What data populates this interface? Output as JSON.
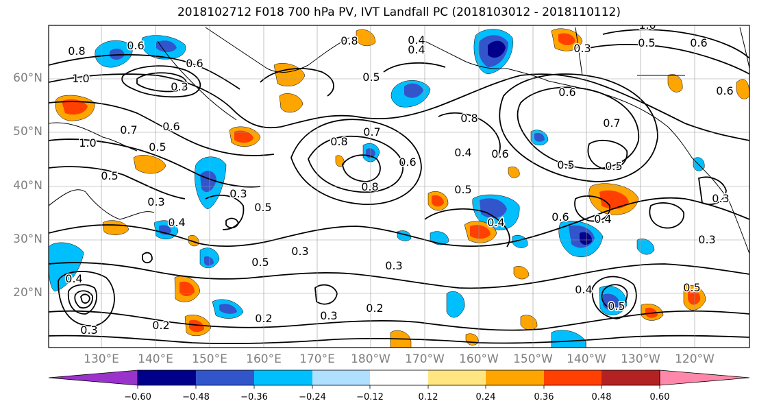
{
  "title": "2018102712 F018 700 hPa PV, IVT Landfall PC (2018103012 - 2018110112)",
  "map": {
    "lat_labels": [
      "60°N",
      "50°N",
      "40°N",
      "30°N",
      "20°N"
    ],
    "lon_labels": [
      "130°E",
      "140°E",
      "150°E",
      "160°E",
      "170°E",
      "180°W",
      "170°W",
      "160°W",
      "150°W",
      "140°W",
      "130°W",
      "120°W"
    ],
    "contour_labels": [
      "1.0",
      "0.8",
      "0.6",
      "0.3",
      "0.6",
      "0.7",
      "0.5",
      "1.0",
      "0.6",
      "0.5",
      "0.3",
      "0.3",
      "0.5",
      "0.4",
      "0.8",
      "0.5",
      "0.4",
      "0.8",
      "0.7",
      "0.8",
      "0.6",
      "0.8",
      "0.4",
      "0.5",
      "0.6",
      "0.5",
      "0.4",
      "0.4",
      "0.6",
      "0.4",
      "0.3",
      "0.3",
      "0.2",
      "0.2",
      "0.3",
      "0.2",
      "0.4",
      "0.5",
      "0.3",
      "0.7",
      "0.6",
      "0.4",
      "0.5",
      "0.3",
      "0.5",
      "1.0",
      "0.5",
      "0.6",
      "0.6",
      "0.3",
      "0.3",
      "0.5"
    ]
  },
  "colorbar": {
    "ticks": [
      "−0.60",
      "−0.48",
      "−0.36",
      "−0.24",
      "−0.12",
      "0.12",
      "0.24",
      "0.36",
      "0.48",
      "0.60"
    ],
    "colors": [
      "#9933cc",
      "#00008b",
      "#3355cc",
      "#00bfff",
      "#b0e0ff",
      "#ffffff",
      "#ffe680",
      "#ffa500",
      "#ff4000",
      "#b22222",
      "#ff88aa"
    ]
  },
  "shading_colors": {
    "neg_strong": "#00008b",
    "neg_mid": "#3355cc",
    "neg_weak": "#00bfff",
    "neg_faint": "#b0e0ff",
    "pos_faint": "#ffe680",
    "pos_weak": "#ffa500",
    "pos_mid": "#ff4000",
    "pos_strong": "#b22222"
  }
}
